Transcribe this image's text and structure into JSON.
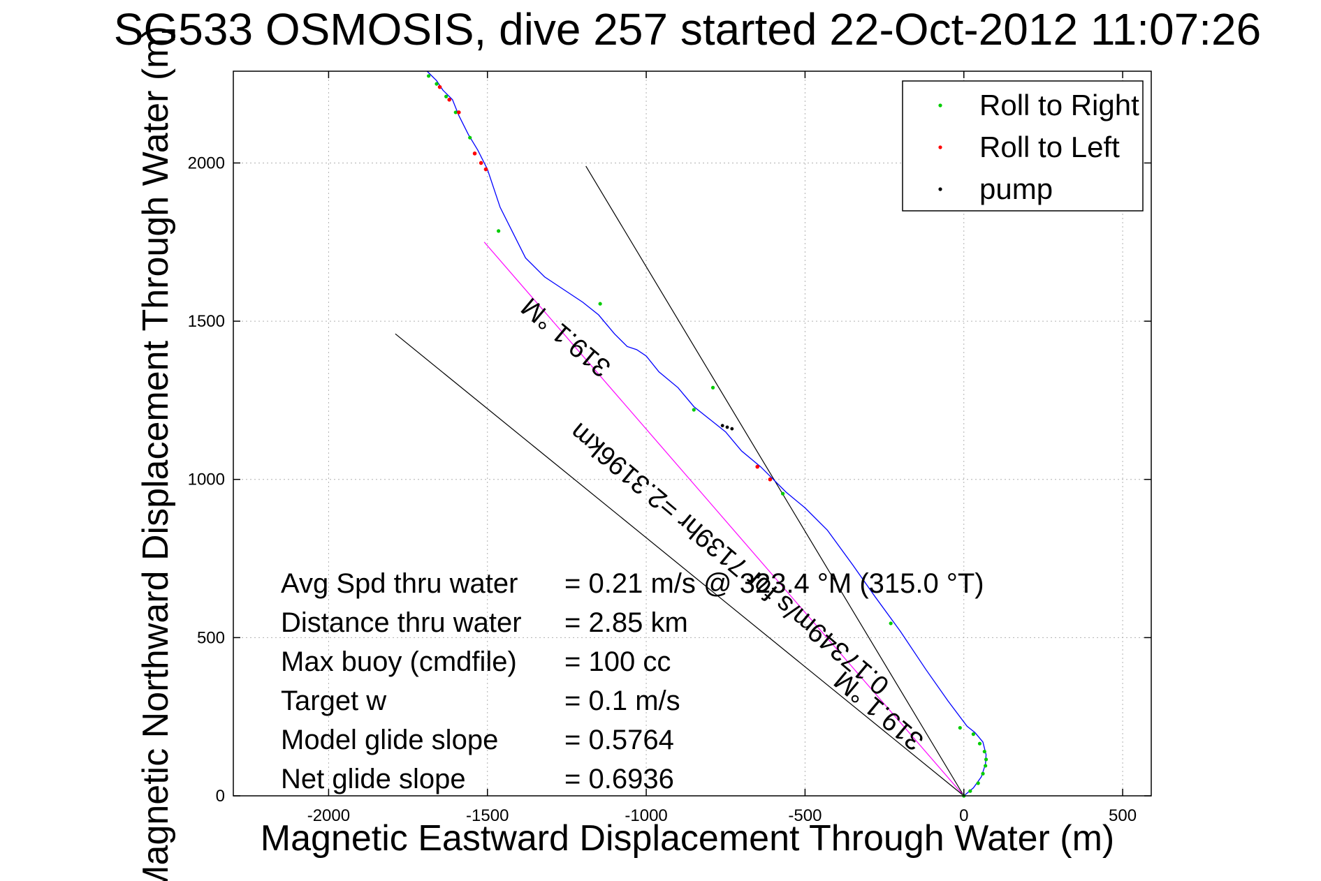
{
  "chart_data": {
    "type": "line",
    "title": "SG533 OSMOSIS, dive 257 started 22-Oct-2012 11:07:26",
    "xlabel": "Magnetic Eastward Displacement Through Water (m)",
    "ylabel": "Magnetic Northward Displacement Through Water (m)",
    "xlim": [
      -2300,
      590
    ],
    "ylim": [
      0,
      2290
    ],
    "xticks": [
      -2000,
      -1500,
      -1000,
      -500,
      0,
      500
    ],
    "yticks": [
      0,
      500,
      1000,
      1500,
      2000
    ],
    "grid": true,
    "legend_position": "top-right",
    "legend": [
      {
        "label": "Roll to Right",
        "color": "#00cc00"
      },
      {
        "label": "Roll to Left",
        "color": "#ff0000"
      },
      {
        "label": "pump",
        "color": "#000000"
      }
    ],
    "track": {
      "color": "#0000ff",
      "x": [
        0,
        30,
        55,
        68,
        70,
        60,
        35,
        10,
        -50,
        -120,
        -200,
        -280,
        -350,
        -430,
        -500,
        -560,
        -600,
        -640,
        -700,
        -750,
        -800,
        -850,
        -900,
        -960,
        -1000,
        -1030,
        -1060,
        -1100,
        -1150,
        -1200,
        -1260,
        -1320,
        -1380,
        -1420,
        -1460,
        -1500,
        -1530,
        -1560,
        -1590,
        -1610,
        -1640,
        -1660,
        -1690
      ],
      "y": [
        0,
        25,
        60,
        100,
        130,
        170,
        200,
        220,
        300,
        400,
        520,
        630,
        730,
        840,
        910,
        960,
        1000,
        1040,
        1090,
        1150,
        1190,
        1230,
        1290,
        1340,
        1390,
        1410,
        1420,
        1460,
        1520,
        1560,
        1600,
        1640,
        1700,
        1780,
        1860,
        1980,
        2040,
        2090,
        2150,
        2200,
        2230,
        2260,
        2290
      ]
    },
    "roll_right_points": {
      "x": [
        0,
        20,
        45,
        60,
        68,
        70,
        65,
        50,
        30,
        -12,
        -230,
        -570,
        -790,
        -850,
        -1145,
        -1465,
        -1555,
        -1600,
        -1630,
        -1660,
        -1685
      ],
      "y": [
        0,
        15,
        40,
        70,
        95,
        115,
        140,
        165,
        195,
        215,
        545,
        955,
        1290,
        1220,
        1555,
        1785,
        2080,
        2160,
        2210,
        2250,
        2275
      ]
    },
    "roll_left_points": {
      "x": [
        -650,
        -610,
        -1505,
        -1520,
        -1540,
        -1590,
        -1620,
        -1650
      ],
      "y": [
        1040,
        1000,
        1980,
        2000,
        2030,
        2160,
        2200,
        2240
      ]
    },
    "pump_points": {
      "x": [
        -760,
        -745,
        -730
      ],
      "y": [
        1170,
        1165,
        1160
      ]
    },
    "reference_lines": [
      {
        "color": "#000000",
        "from": [
          0,
          0
        ],
        "to": [
          -1190,
          1990
        ]
      },
      {
        "color": "#ff00ff",
        "from": [
          0,
          0
        ],
        "to": [
          -1510,
          1750
        ]
      },
      {
        "color": "#000000",
        "from": [
          0,
          0
        ],
        "to": [
          -1790,
          1460
        ]
      }
    ],
    "annotations": [
      {
        "text": "319.1 °M",
        "x": -1235,
        "y": 1470,
        "angle": 40
      },
      {
        "text": "0.17349m/s for 7139hr =2.3196km",
        "x": -720,
        "y": 770,
        "angle": 40
      },
      {
        "text": "319.1 °M",
        "x": -250,
        "y": 290,
        "angle": 40
      }
    ],
    "stats": [
      {
        "label": "Avg Spd thru water",
        "value": "=  0.21 m/s @  323.4  °M (315.0 °T)"
      },
      {
        "label": "Distance thru water",
        "value": "=  2.85 km"
      },
      {
        "label": "Max buoy (cmdfile)",
        "value": "= 100 cc"
      },
      {
        "label": "Target w",
        "value": "= 0.1 m/s"
      },
      {
        "label": "Model glide slope",
        "value": "= 0.5764"
      },
      {
        "label": "Net glide slope",
        "value": "= 0.6936"
      }
    ]
  }
}
